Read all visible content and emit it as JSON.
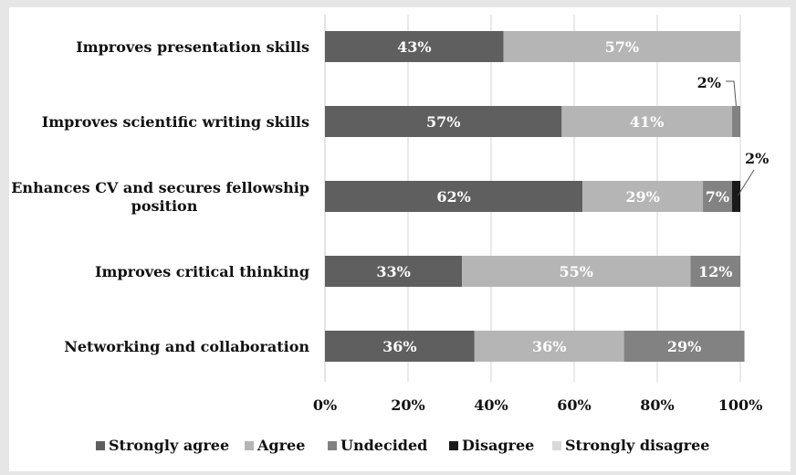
{
  "chart_data": {
    "type": "bar",
    "orientation": "horizontal",
    "stacked": true,
    "percent": true,
    "categories": [
      "Improves presentation skills",
      "Improves scientific writing skills",
      "Enhances CV and secures fellowship position",
      "Improves critical thinking",
      "Networking and collaboration"
    ],
    "category_lines": [
      [
        "Improves presentation skills"
      ],
      [
        "Improves scientific writing skills"
      ],
      [
        "Enhances CV and secures fellowship",
        "position"
      ],
      [
        "Improves critical thinking"
      ],
      [
        "Networking and collaboration"
      ]
    ],
    "series": [
      {
        "name": "Strongly agree",
        "color": "#5f5f5f",
        "values": [
          43,
          57,
          62,
          33,
          36
        ]
      },
      {
        "name": "Agree",
        "color": "#b5b5b5",
        "values": [
          57,
          41,
          29,
          55,
          36
        ]
      },
      {
        "name": "Undecided",
        "color": "#828282",
        "values": [
          0,
          2,
          7,
          12,
          29
        ]
      },
      {
        "name": "Disagree",
        "color": "#1a1a1a",
        "values": [
          0,
          0,
          2,
          0,
          0
        ]
      },
      {
        "name": "Strongly disagree",
        "color": "#d9d9d9",
        "values": [
          0,
          0,
          0,
          0,
          0
        ]
      }
    ],
    "data_labels": [
      [
        "43%",
        "57%",
        null,
        null,
        null
      ],
      [
        "57%",
        "41%",
        null,
        null,
        null
      ],
      [
        "62%",
        "29%",
        "7%",
        null,
        null
      ],
      [
        "33%",
        "55%",
        "12%",
        null,
        null
      ],
      [
        "36%",
        "36%",
        "29%",
        null,
        null
      ]
    ],
    "callouts": [
      {
        "category_index": 1,
        "series_index": 2,
        "text": "2%"
      },
      {
        "category_index": 2,
        "series_index": 3,
        "text": "2%"
      }
    ],
    "x_ticks": [
      "0%",
      "20%",
      "40%",
      "60%",
      "80%",
      "100%"
    ],
    "xlim": [
      0,
      100
    ],
    "grid": true,
    "legend_position": "bottom",
    "title": "",
    "xlabel": "",
    "ylabel": ""
  }
}
